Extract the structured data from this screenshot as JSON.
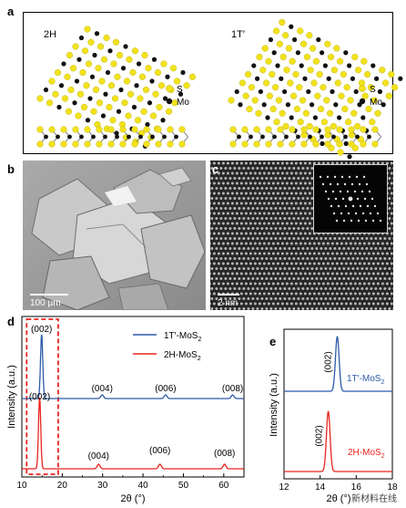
{
  "figure": {
    "panel_letters": {
      "a": "a",
      "b": "b",
      "c": "c",
      "d": "d",
      "e": "e"
    },
    "panel_a": {
      "phase_2h": "2H",
      "phase_1t": "1T′",
      "legend_s": "S",
      "legend_mo": "Mo",
      "colors": {
        "S": "#f2e21c",
        "Mo": "#111111"
      }
    },
    "panel_b": {
      "scale_bar_label": "100 µm"
    },
    "panel_c": {
      "scale_bar_label": "2 nm"
    },
    "watermark": "新材料在线"
  },
  "chart_data": [
    {
      "panel": "d",
      "type": "line",
      "xlabel": "2θ (°)",
      "ylabel": "Intensity (a.u.)",
      "xlim": [
        10,
        65
      ],
      "xticks": [
        "10",
        "20",
        "30",
        "40",
        "50",
        "60"
      ],
      "legend_position": "top-right",
      "series": [
        {
          "name": "1T′-MoS2",
          "color": "#2c5aa8",
          "peaks": [
            {
              "x": 14.9,
              "label": "(002)"
            },
            {
              "x": 29.9,
              "label": "(004)"
            },
            {
              "x": 45.6,
              "label": "(006)"
            },
            {
              "x": 62.2,
              "label": "(008)"
            }
          ]
        },
        {
          "name": "2H-MoS2",
          "color": "#e8241f",
          "peaks": [
            {
              "x": 14.4,
              "label": "(002)"
            },
            {
              "x": 29.0,
              "label": "(004)"
            },
            {
              "x": 44.2,
              "label": "(006)"
            },
            {
              "x": 60.2,
              "label": "(008)"
            }
          ]
        }
      ],
      "highlight_box": {
        "x": [
          11.2,
          19.0
        ],
        "color": "#e8241f"
      }
    },
    {
      "panel": "e",
      "type": "line",
      "xlabel": "2θ (°)",
      "ylabel": "Intensity (a.u.)",
      "xlim": [
        12,
        18
      ],
      "xticks": [
        "12",
        "14",
        "16",
        "18"
      ],
      "series": [
        {
          "name": "1T′-MoS2",
          "color": "#2c5aa8",
          "peak_x": 14.95,
          "peak_label": "(002)"
        },
        {
          "name": "2H-MoS2",
          "color": "#e8241f",
          "peak_x": 14.45,
          "peak_label": "(002)"
        }
      ]
    }
  ]
}
